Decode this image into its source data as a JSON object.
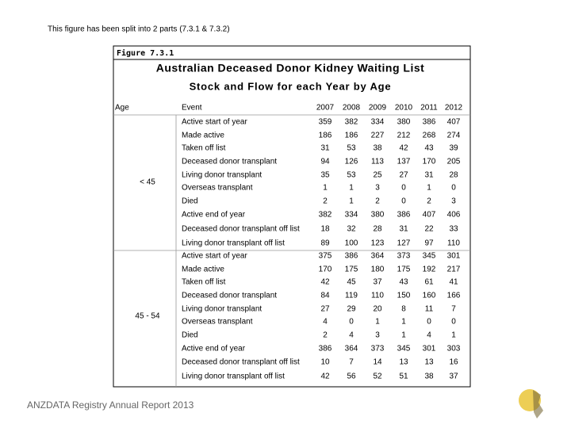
{
  "note": "This figure has been split into 2 parts (7.3.1 & 7.3.2)",
  "figure": {
    "label": "Figure 7.3.1",
    "title": "Australian Deceased Donor Kidney Waiting List",
    "subtitle": "Stock and Flow for each Year by Age"
  },
  "table": {
    "header": [
      "Age",
      "Event",
      "2007",
      "2008",
      "2009",
      "2010",
      "2011",
      "2012"
    ],
    "groups": [
      {
        "age": "< 45",
        "rows": [
          [
            "Active start of year",
            359,
            382,
            334,
            380,
            386,
            407
          ],
          [
            "Made active",
            186,
            186,
            227,
            212,
            268,
            274
          ],
          [
            "Taken off list",
            31,
            53,
            38,
            42,
            43,
            39
          ],
          [
            "Deceased donor transplant",
            94,
            126,
            113,
            137,
            170,
            205
          ],
          [
            "Living donor transplant",
            35,
            53,
            25,
            27,
            31,
            28
          ],
          [
            "Overseas transplant",
            1,
            1,
            3,
            0,
            1,
            0
          ],
          [
            "Died",
            2,
            1,
            2,
            0,
            2,
            3
          ],
          [
            "Active end of year",
            382,
            334,
            380,
            386,
            407,
            406
          ],
          [
            "Deceased donor transplant off list",
            18,
            32,
            28,
            31,
            22,
            33
          ],
          [
            "Living donor transplant off list",
            89,
            100,
            123,
            127,
            97,
            110
          ]
        ]
      },
      {
        "age": "45 - 54",
        "rows": [
          [
            "Active start of year",
            375,
            386,
            364,
            373,
            345,
            301
          ],
          [
            "Made active",
            170,
            175,
            180,
            175,
            192,
            217
          ],
          [
            "Taken off list",
            42,
            45,
            37,
            43,
            61,
            41
          ],
          [
            "Deceased donor transplant",
            84,
            119,
            110,
            150,
            160,
            166
          ],
          [
            "Living donor transplant",
            27,
            29,
            20,
            8,
            11,
            7
          ],
          [
            "Overseas transplant",
            4,
            0,
            1,
            1,
            0,
            0
          ],
          [
            "Died",
            2,
            4,
            3,
            1,
            4,
            1
          ],
          [
            "Active end of year",
            386,
            364,
            373,
            345,
            301,
            303
          ],
          [
            "Deceased donor transplant off list",
            10,
            7,
            14,
            13,
            13,
            16
          ],
          [
            "Living donor transplant off list",
            42,
            56,
            52,
            51,
            38,
            37
          ]
        ]
      }
    ]
  },
  "footer": "ANZDATA Registry Annual Report 2013"
}
